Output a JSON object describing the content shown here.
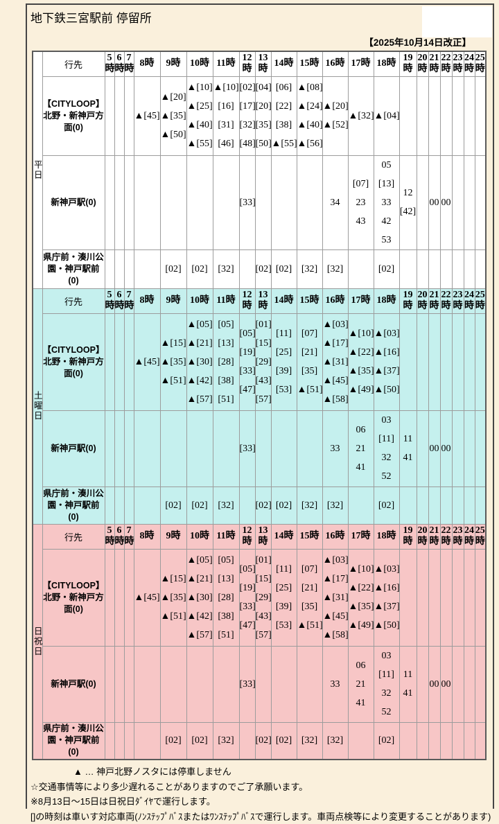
{
  "page": {
    "title": "地下鉄三宮駅前 停留所",
    "revision_date": "【2025年10月14日改正】"
  },
  "colors": {
    "page_bg": "#FAF0DC",
    "weekday_bg": "#FFFFFF",
    "saturday_bg": "#C5F0EE",
    "holiday_bg": "#F7C6C6",
    "cell_border": "#9C9C9C"
  },
  "table": {
    "destination_header": "行先",
    "hours": [
      "5時",
      "6時",
      "7時",
      "8時",
      "9時",
      "10時",
      "11時",
      "12時",
      "13時",
      "14時",
      "15時",
      "16時",
      "17時",
      "18時",
      "19時",
      "20時",
      "21時",
      "22時",
      "23時",
      "24時",
      "25時"
    ],
    "sections": [
      {
        "day_label": "平日",
        "day_key": "weekday",
        "rows": [
          {
            "destination_lines": [
              "【CITYLOOP】",
              "北野・新神戸方面(0)"
            ],
            "times": [
              [],
              [],
              [],
              [
                "▲[45]"
              ],
              [
                "▲[20]",
                "▲[35]",
                "▲[50]"
              ],
              [
                "▲[10]",
                "▲[25]",
                "▲[40]",
                "▲[55]"
              ],
              [
                "▲[10]",
                "[16]",
                "[31]",
                "[46]"
              ],
              [
                "[02]",
                "[17]",
                "[32]",
                "[48]"
              ],
              [
                "[04]",
                "[20]",
                "[35]",
                "[50]"
              ],
              [
                "[06]",
                "[22]",
                "[38]",
                "▲[55]"
              ],
              [
                "▲[08]",
                "▲[24]",
                "▲[40]",
                "▲[56]"
              ],
              [
                "▲[20]",
                "▲[52]"
              ],
              [
                "▲[32]"
              ],
              [
                "▲[04]"
              ],
              [],
              [],
              [],
              [],
              [],
              [],
              []
            ]
          },
          {
            "destination_lines": [
              "新神戸駅(0)"
            ],
            "times": [
              [],
              [],
              [],
              [],
              [],
              [],
              [],
              [
                "[33]"
              ],
              [],
              [],
              [],
              [
                "34"
              ],
              [
                "[07]",
                "23",
                "43"
              ],
              [
                "05",
                "[13]",
                "33",
                "42",
                "53"
              ],
              [
                "12",
                "[42]"
              ],
              [],
              [
                "00"
              ],
              [
                "00"
              ],
              [],
              [],
              []
            ]
          },
          {
            "destination_lines": [
              "県庁前・湊川公園・神戸駅前(0)"
            ],
            "times": [
              [],
              [],
              [],
              [],
              [
                "[02]"
              ],
              [
                "[02]"
              ],
              [
                "[32]"
              ],
              [],
              [
                "[02]"
              ],
              [
                "[02]"
              ],
              [
                "[32]"
              ],
              [
                "[32]"
              ],
              [],
              [
                "[02]"
              ],
              [],
              [],
              [],
              [],
              [],
              [],
              []
            ]
          }
        ]
      },
      {
        "day_label": "土曜日",
        "day_key": "saturday",
        "rows": [
          {
            "destination_lines": [
              "【CITYLOOP】",
              "北野・新神戸方面(0)"
            ],
            "times": [
              [],
              [],
              [],
              [
                "▲[45]"
              ],
              [
                "▲[15]",
                "▲[35]",
                "▲[51]"
              ],
              [
                "▲[05]",
                "▲[21]",
                "▲[30]",
                "▲[42]",
                "▲[57]"
              ],
              [
                "[05]",
                "[13]",
                "[28]",
                "[38]",
                "[51]"
              ],
              [
                "[05]",
                "[19]",
                "[33]",
                "[47]"
              ],
              [
                "[01]",
                "[15]",
                "[29]",
                "[43]",
                "[57]"
              ],
              [
                "[11]",
                "[25]",
                "[39]",
                "[53]"
              ],
              [
                "[07]",
                "[21]",
                "[35]",
                "▲[51]"
              ],
              [
                "▲[03]",
                "▲[17]",
                "▲[31]",
                "▲[45]",
                "▲[58]"
              ],
              [
                "▲[10]",
                "▲[22]",
                "▲[35]",
                "▲[49]"
              ],
              [
                "▲[03]",
                "▲[16]",
                "▲[37]",
                "▲[50]"
              ],
              [],
              [],
              [],
              [],
              [],
              [],
              []
            ]
          },
          {
            "destination_lines": [
              "新神戸駅(0)"
            ],
            "times": [
              [],
              [],
              [],
              [],
              [],
              [],
              [],
              [
                "[33]"
              ],
              [],
              [],
              [],
              [
                "33"
              ],
              [
                "06",
                "21",
                "41"
              ],
              [
                "03",
                "[11]",
                "32",
                "52"
              ],
              [
                "11",
                "41"
              ],
              [],
              [
                "00"
              ],
              [
                "00"
              ],
              [],
              [],
              []
            ]
          },
          {
            "destination_lines": [
              "県庁前・湊川公園・神戸駅前(0)"
            ],
            "times": [
              [],
              [],
              [],
              [],
              [
                "[02]"
              ],
              [
                "[02]"
              ],
              [
                "[32]"
              ],
              [],
              [
                "[02]"
              ],
              [
                "[02]"
              ],
              [
                "[32]"
              ],
              [
                "[32]"
              ],
              [],
              [
                "[02]"
              ],
              [],
              [],
              [],
              [],
              [],
              [],
              []
            ]
          }
        ]
      },
      {
        "day_label": "日祝日",
        "day_key": "holiday",
        "rows": [
          {
            "destination_lines": [
              "【CITYLOOP】",
              "北野・新神戸方面(0)"
            ],
            "times": [
              [],
              [],
              [],
              [
                "▲[45]"
              ],
              [
                "▲[15]",
                "▲[35]",
                "▲[51]"
              ],
              [
                "▲[05]",
                "▲[21]",
                "▲[30]",
                "▲[42]",
                "▲[57]"
              ],
              [
                "[05]",
                "[13]",
                "[28]",
                "[38]",
                "[51]"
              ],
              [
                "[05]",
                "[19]",
                "[33]",
                "[47]"
              ],
              [
                "[01]",
                "[15]",
                "[29]",
                "[43]",
                "[57]"
              ],
              [
                "[11]",
                "[25]",
                "[39]",
                "[53]"
              ],
              [
                "[07]",
                "[21]",
                "[35]",
                "▲[51]"
              ],
              [
                "▲[03]",
                "▲[17]",
                "▲[31]",
                "▲[45]",
                "▲[58]"
              ],
              [
                "▲[10]",
                "▲[22]",
                "▲[35]",
                "▲[49]"
              ],
              [
                "▲[03]",
                "▲[16]",
                "▲[37]",
                "▲[50]"
              ],
              [],
              [],
              [],
              [],
              [],
              [],
              []
            ]
          },
          {
            "destination_lines": [
              "新神戸駅(0)"
            ],
            "times": [
              [],
              [],
              [],
              [],
              [],
              [],
              [],
              [
                "[33]"
              ],
              [],
              [],
              [],
              [
                "33"
              ],
              [
                "06",
                "21",
                "41"
              ],
              [
                "03",
                "[11]",
                "32",
                "52"
              ],
              [
                "11",
                "41"
              ],
              [],
              [
                "00"
              ],
              [
                "00"
              ],
              [],
              [],
              []
            ]
          },
          {
            "destination_lines": [
              "県庁前・湊川公園・神戸駅前(0)"
            ],
            "times": [
              [],
              [],
              [],
              [],
              [
                "[02]"
              ],
              [
                "[02]"
              ],
              [
                "[32]"
              ],
              [],
              [
                "[02]"
              ],
              [
                "[02]"
              ],
              [
                "[32]"
              ],
              [
                "[32]"
              ],
              [],
              [
                "[02]"
              ],
              [],
              [],
              [],
              [],
              [],
              [],
              []
            ]
          }
        ]
      }
    ]
  },
  "notes": [
    "▲ … 神戸北野ノスタには停車しません",
    "☆交通事情等により多少遅れることがありますのでご了承願います。",
    "※8月13日～15日は日祝日ﾀﾞｲﾔで運行します。",
    "[]の時刻は車いす対応車両(ﾉﾝｽﾃｯﾌﾟﾊﾞｽまたはﾜﾝｽﾃｯﾌﾟﾊﾞｽで運行します。車両点検等により変更することがあります)"
  ]
}
